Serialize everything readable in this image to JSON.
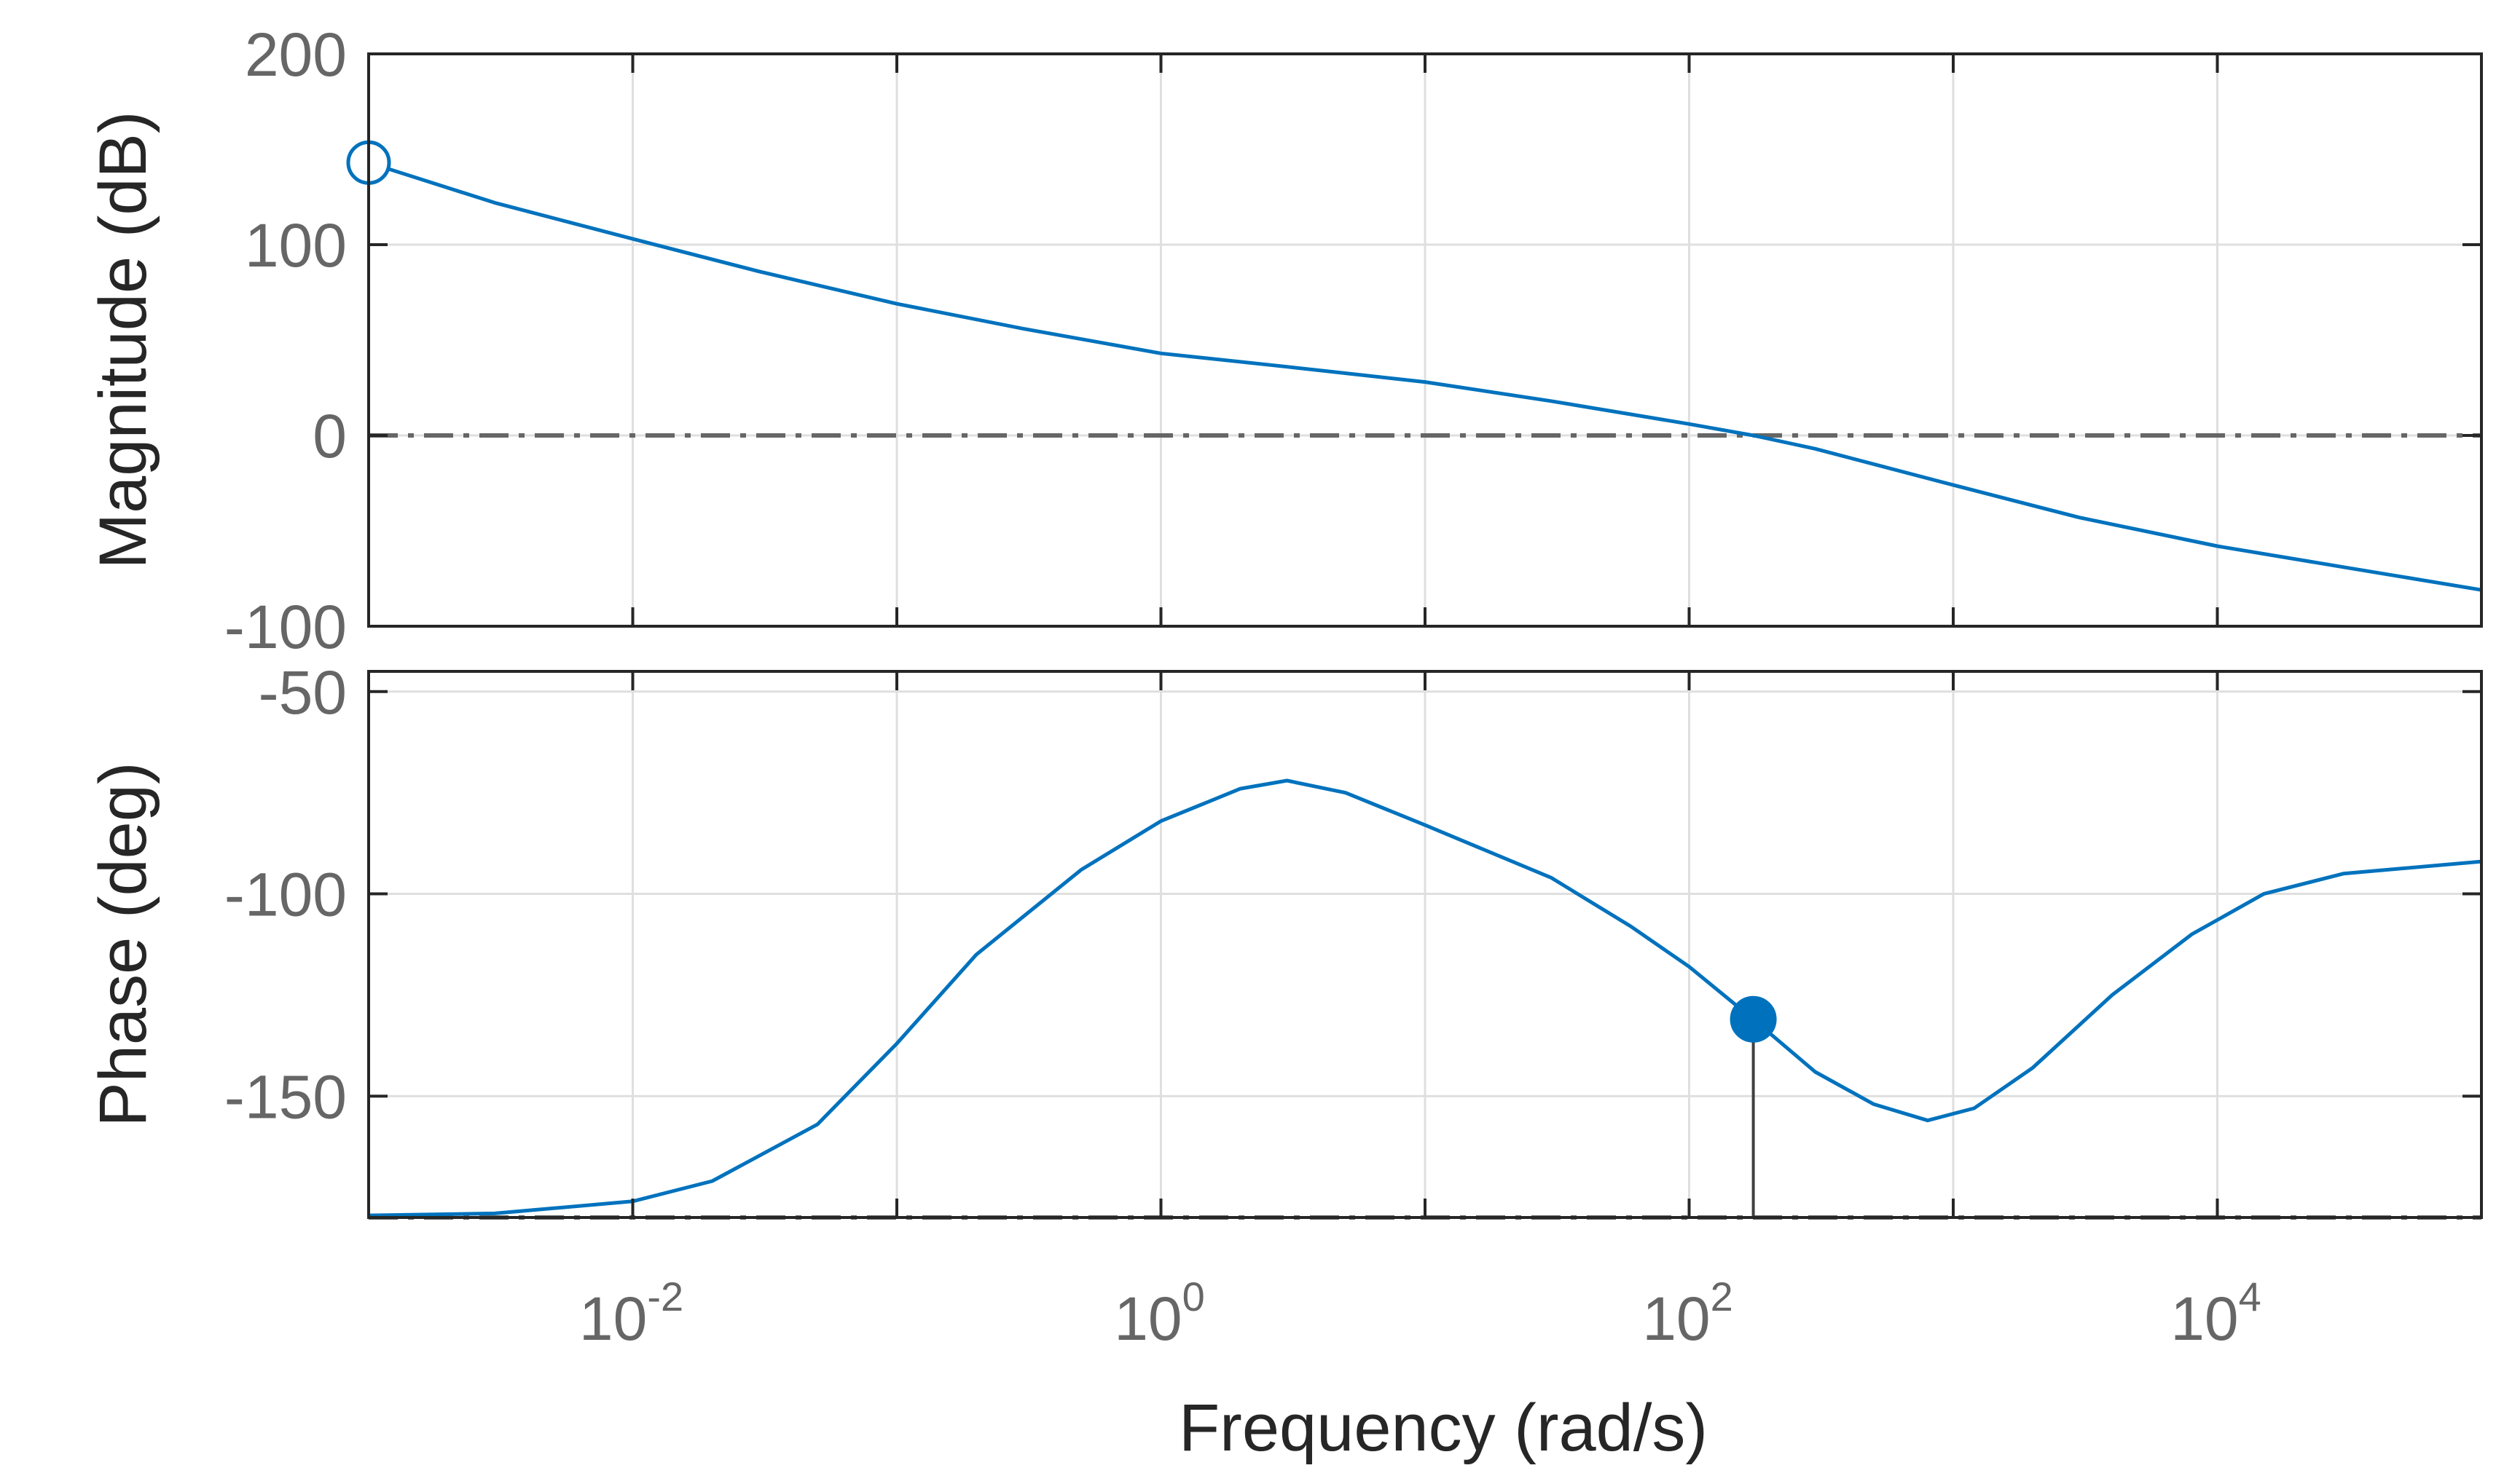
{
  "chart_data": [
    {
      "type": "line",
      "panel": "magnitude",
      "ylabel": "Magnitude (dB)",
      "xscale": "log",
      "xlim": [
        0.001,
        100000
      ],
      "ylim": [
        -100,
        200
      ],
      "yticks": [
        -100,
        0,
        100,
        200
      ],
      "ytick_labels": [
        "-100",
        "0",
        "100",
        "200"
      ],
      "grid": true,
      "reference_line": {
        "y": 0,
        "style": "dash-dot"
      },
      "series": [
        {
          "name": "Magnitude",
          "color": "#0072BD",
          "points": [
            [
              0.001,
              143
            ],
            [
              0.003,
              122
            ],
            [
              0.01,
              103
            ],
            [
              0.03,
              86
            ],
            [
              0.1,
              69
            ],
            [
              0.3,
              56
            ],
            [
              1,
              43
            ],
            [
              3,
              36
            ],
            [
              10,
              28
            ],
            [
              30,
              18
            ],
            [
              100,
              6
            ],
            [
              175,
              0
            ],
            [
              300,
              -7
            ],
            [
              1000,
              -26
            ],
            [
              3000,
              -43
            ],
            [
              10000,
              -58
            ],
            [
              30000,
              -69
            ],
            [
              100000,
              -81
            ]
          ]
        }
      ],
      "marker": {
        "x": 0.001,
        "y": 143,
        "style": "open-circle"
      }
    },
    {
      "type": "line",
      "panel": "phase",
      "ylabel": "Phase (deg)",
      "xlabel": "Frequency (rad/s)",
      "xscale": "log",
      "xlim": [
        0.001,
        100000
      ],
      "ylim": [
        -180,
        -45
      ],
      "yticks": [
        -150,
        -100,
        -50
      ],
      "ytick_labels": [
        "-150",
        "-100",
        "-50"
      ],
      "xticks": [
        0.01,
        1,
        100,
        10000
      ],
      "xtick_labels": [
        {
          "base": "10",
          "exp": "-2"
        },
        {
          "base": "10",
          "exp": "0"
        },
        {
          "base": "10",
          "exp": "2"
        },
        {
          "base": "10",
          "exp": "4"
        }
      ],
      "grid": true,
      "reference_line": {
        "y": -180,
        "style": "dash-dot"
      },
      "series": [
        {
          "name": "Phase",
          "color": "#0072BD",
          "points": [
            [
              0.001,
              -179.5
            ],
            [
              0.003,
              -179
            ],
            [
              0.01,
              -176
            ],
            [
              0.02,
              -171
            ],
            [
              0.05,
              -157
            ],
            [
              0.1,
              -137
            ],
            [
              0.2,
              -115
            ],
            [
              0.5,
              -94
            ],
            [
              1,
              -82
            ],
            [
              2,
              -74
            ],
            [
              3,
              -72
            ],
            [
              5,
              -75
            ],
            [
              10,
              -83
            ],
            [
              30,
              -96
            ],
            [
              60,
              -108
            ],
            [
              100,
              -118
            ],
            [
              175,
              -131
            ],
            [
              300,
              -144
            ],
            [
              500,
              -152
            ],
            [
              800,
              -156
            ],
            [
              1200,
              -153
            ],
            [
              2000,
              -143
            ],
            [
              4000,
              -125
            ],
            [
              8000,
              -110
            ],
            [
              15000,
              -100
            ],
            [
              30000,
              -95
            ],
            [
              100000,
              -92
            ]
          ]
        }
      ],
      "marker": {
        "x": 175,
        "y": -131,
        "style": "filled-circle",
        "drop_to": -180
      }
    }
  ]
}
